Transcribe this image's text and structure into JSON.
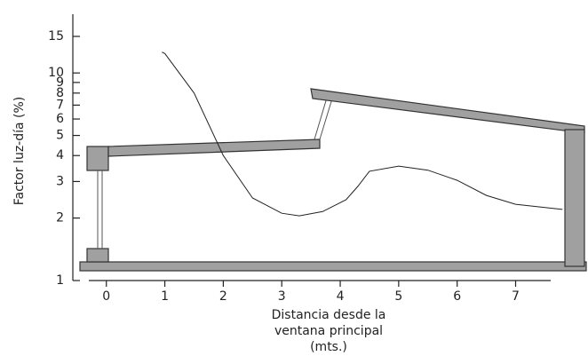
{
  "chart_data": {
    "type": "line",
    "y_label": "Factor luz-día (%)",
    "x_label": [
      "Distancia desde la",
      "ventana principal",
      "(mts.)"
    ],
    "x": [
      0.95,
      1,
      1.5,
      2,
      2.5,
      3,
      3.3,
      3.7,
      4.1,
      4.3,
      4.5,
      5,
      5.5,
      6,
      6.5,
      7,
      7.8
    ],
    "values": [
      12.6,
      12.4,
      8.0,
      4.0,
      2.5,
      2.11,
      2.05,
      2.15,
      2.45,
      2.84,
      3.36,
      3.56,
      3.4,
      3.04,
      2.57,
      2.33,
      2.2
    ],
    "color": "#222222",
    "log_y": true,
    "xlim": [
      -0.3,
      7.6
    ],
    "xticks": [
      0,
      1,
      2,
      3,
      4,
      5,
      6,
      7
    ],
    "ylim": [
      1,
      15
    ],
    "yticks": [
      1,
      2,
      3,
      4,
      5,
      6,
      7,
      8,
      9,
      10,
      15
    ]
  }
}
